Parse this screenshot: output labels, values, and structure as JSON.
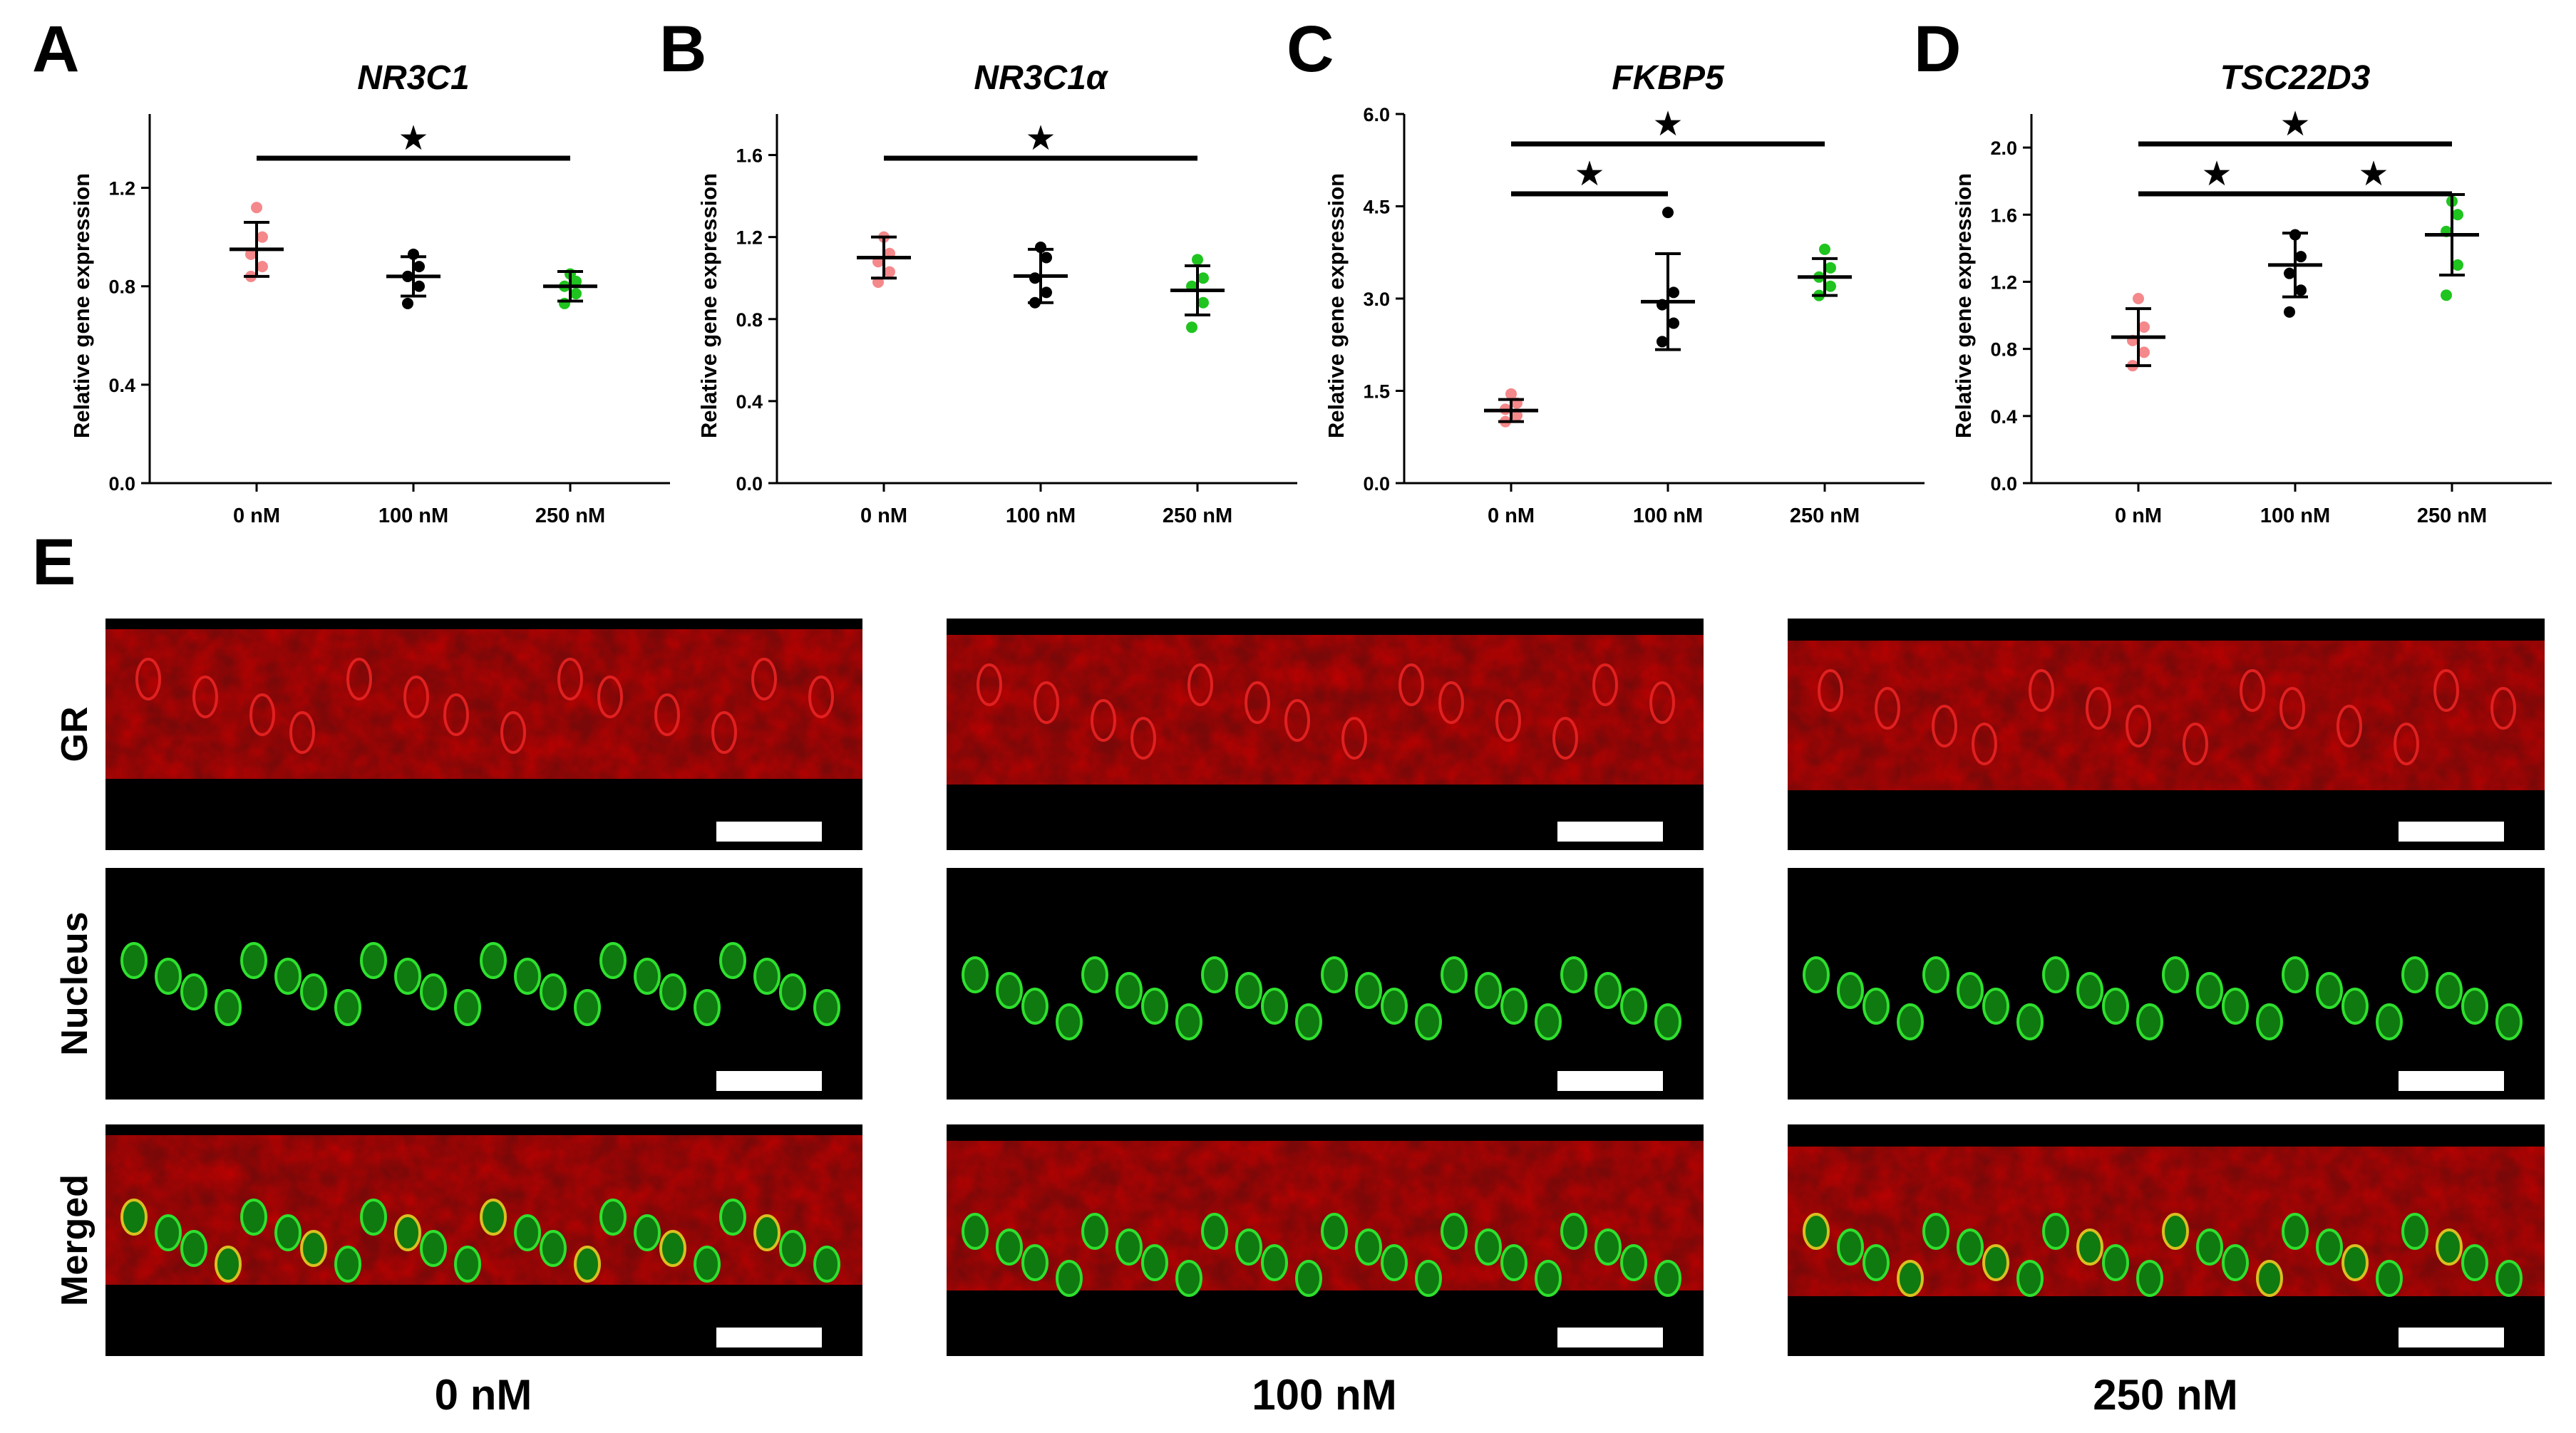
{
  "colors": {
    "dose_0": "#f4888a",
    "dose_100": "#000000",
    "dose_250": "#1fc41f",
    "gr_stain": "#e01212",
    "nucleus_stain": "#22d822"
  },
  "chart_data": [
    {
      "panel": "A",
      "type": "scatter",
      "title": "NR3C1",
      "xlabel": "",
      "ylabel": "Relative gene expression",
      "categories": [
        "0 nM",
        "100 nM",
        "250 nM"
      ],
      "ylim": [
        0,
        1.5
      ],
      "yticks": [
        "0.0",
        "0.4",
        "0.8",
        "1.2"
      ],
      "points": [
        [
          1.12,
          1.0,
          0.93,
          0.88,
          0.84
        ],
        [
          0.93,
          0.88,
          0.84,
          0.8,
          0.73
        ],
        [
          0.85,
          0.82,
          0.8,
          0.77,
          0.73
        ]
      ],
      "mean": [
        0.95,
        0.84,
        0.8
      ],
      "sd": [
        0.11,
        0.08,
        0.06
      ],
      "significance": [
        {
          "from": 0,
          "to": 2,
          "label": "★"
        }
      ]
    },
    {
      "panel": "B",
      "type": "scatter",
      "title": "NR3C1α",
      "xlabel": "",
      "ylabel": "Relative gene expression",
      "categories": [
        "0 nM",
        "100 nM",
        "250 nM"
      ],
      "ylim": [
        0,
        1.8
      ],
      "yticks": [
        "0.0",
        "0.4",
        "0.8",
        "1.2",
        "1.6"
      ],
      "points": [
        [
          1.2,
          1.12,
          1.08,
          1.03,
          0.98
        ],
        [
          1.15,
          1.1,
          1.0,
          0.93,
          0.88
        ],
        [
          1.09,
          1.0,
          0.96,
          0.88,
          0.76
        ]
      ],
      "mean": [
        1.1,
        1.01,
        0.94
      ],
      "sd": [
        0.1,
        0.13,
        0.12
      ],
      "significance": [
        {
          "from": 0,
          "to": 2,
          "label": "★"
        }
      ]
    },
    {
      "panel": "C",
      "type": "scatter",
      "title": "FKBP5",
      "xlabel": "",
      "ylabel": "Relative gene expression",
      "categories": [
        "0 nM",
        "100 nM",
        "250 nM"
      ],
      "ylim": [
        0,
        6.0
      ],
      "yticks": [
        "0.0",
        "1.5",
        "3.0",
        "4.5",
        "6.0"
      ],
      "points": [
        [
          1.45,
          1.3,
          1.2,
          1.1,
          1.0
        ],
        [
          4.4,
          3.1,
          2.9,
          2.6,
          2.3
        ],
        [
          3.8,
          3.5,
          3.35,
          3.2,
          3.05
        ]
      ],
      "mean": [
        1.18,
        2.95,
        3.35
      ],
      "sd": [
        0.18,
        0.78,
        0.3
      ],
      "significance": [
        {
          "from": 0,
          "to": 1,
          "label": "★"
        },
        {
          "from": 0,
          "to": 2,
          "label": "★"
        }
      ]
    },
    {
      "panel": "D",
      "type": "scatter",
      "title": "TSC22D3",
      "xlabel": "",
      "ylabel": "Relative gene expression",
      "categories": [
        "0 nM",
        "100 nM",
        "250 nM"
      ],
      "ylim": [
        0,
        2.2
      ],
      "yticks": [
        "0.0",
        "0.4",
        "0.8",
        "1.2",
        "1.6",
        "2.0"
      ],
      "points": [
        [
          1.1,
          0.93,
          0.85,
          0.78,
          0.7
        ],
        [
          1.48,
          1.35,
          1.25,
          1.15,
          1.02
        ],
        [
          1.68,
          1.6,
          1.5,
          1.3,
          1.12
        ]
      ],
      "mean": [
        0.87,
        1.3,
        1.48
      ],
      "sd": [
        0.17,
        0.19,
        0.24
      ],
      "significance": [
        {
          "from": 0,
          "to": 1,
          "label": "★"
        },
        {
          "from": 1,
          "to": 2,
          "label": "★"
        },
        {
          "from": 0,
          "to": 2,
          "label": "★"
        }
      ]
    }
  ],
  "images": {
    "panel_label": "E",
    "rows": [
      "GR",
      "Nucleus",
      "Merged"
    ],
    "columns": [
      "0 nM",
      "100 nM",
      "250 nM"
    ]
  }
}
